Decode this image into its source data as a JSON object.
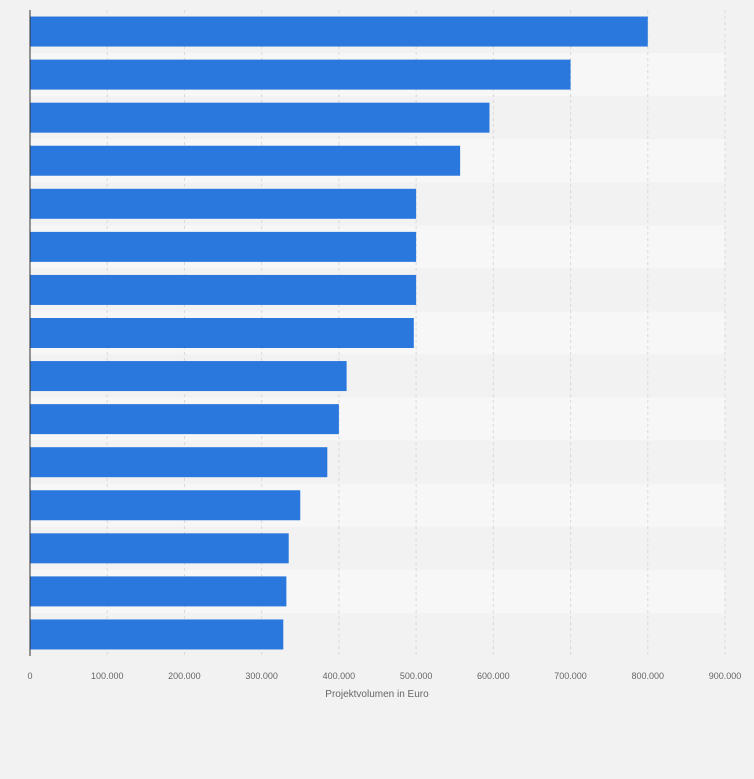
{
  "chart_data": {
    "type": "bar",
    "orientation": "horizontal",
    "title": "",
    "xlabel": "Projektvolumen in Euro",
    "ylabel": "",
    "categories": [
      "",
      "",
      "",
      "",
      "",
      "",
      "",
      "",
      "",
      "",
      "",
      "",
      "",
      "",
      ""
    ],
    "values": [
      800000,
      700000,
      595000,
      557000,
      500000,
      500000,
      500000,
      497000,
      410000,
      400000,
      385000,
      350000,
      335000,
      332000,
      328000
    ],
    "xlim": [
      0,
      900000
    ],
    "x_ticks": [
      0,
      100000,
      200000,
      300000,
      400000,
      500000,
      600000,
      700000,
      800000,
      900000
    ],
    "x_tick_labels": [
      "0",
      "100.000",
      "200.000",
      "300.000",
      "400.000",
      "500.000",
      "600.000",
      "700.000",
      "800.000",
      "900.000"
    ],
    "grid": true,
    "legend": "none",
    "colors": {
      "bar": "#2a77dd",
      "background": "#f2f2f2",
      "band_light": "#f7f7f7",
      "band_dark": "#f2f2f2",
      "grid": "#d9d9d9",
      "axis": "#333333",
      "text": "#666666"
    }
  }
}
